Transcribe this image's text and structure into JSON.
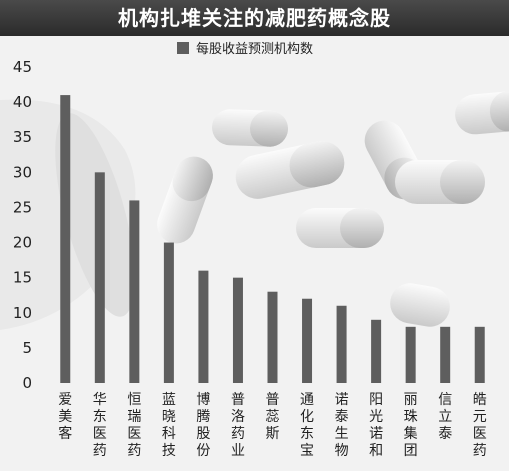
{
  "chart_data": {
    "type": "bar",
    "title": "机构扎堆关注的减肥药概念股",
    "categories": [
      "爱美客",
      "华东医药",
      "恒瑞医药",
      "蓝晓科技",
      "博腾股份",
      "普洛药业",
      "普蕊斯",
      "通化东宝",
      "诺泰生物",
      "阳光诺和",
      "丽珠集团",
      "信立泰",
      "皓元医药"
    ],
    "series": [
      {
        "name": "每股收益预测机构数",
        "values": [
          41,
          30,
          26,
          20,
          16,
          15,
          13,
          12,
          11,
          9,
          8,
          8,
          8
        ]
      }
    ],
    "ylim": [
      0,
      45
    ],
    "yticks": [
      0,
      5,
      10,
      15,
      20,
      25,
      30,
      35,
      40,
      45
    ],
    "legend": "top",
    "grid": false,
    "colors": {
      "bar": "#5e5e5e",
      "title_bg": "#333333"
    }
  }
}
